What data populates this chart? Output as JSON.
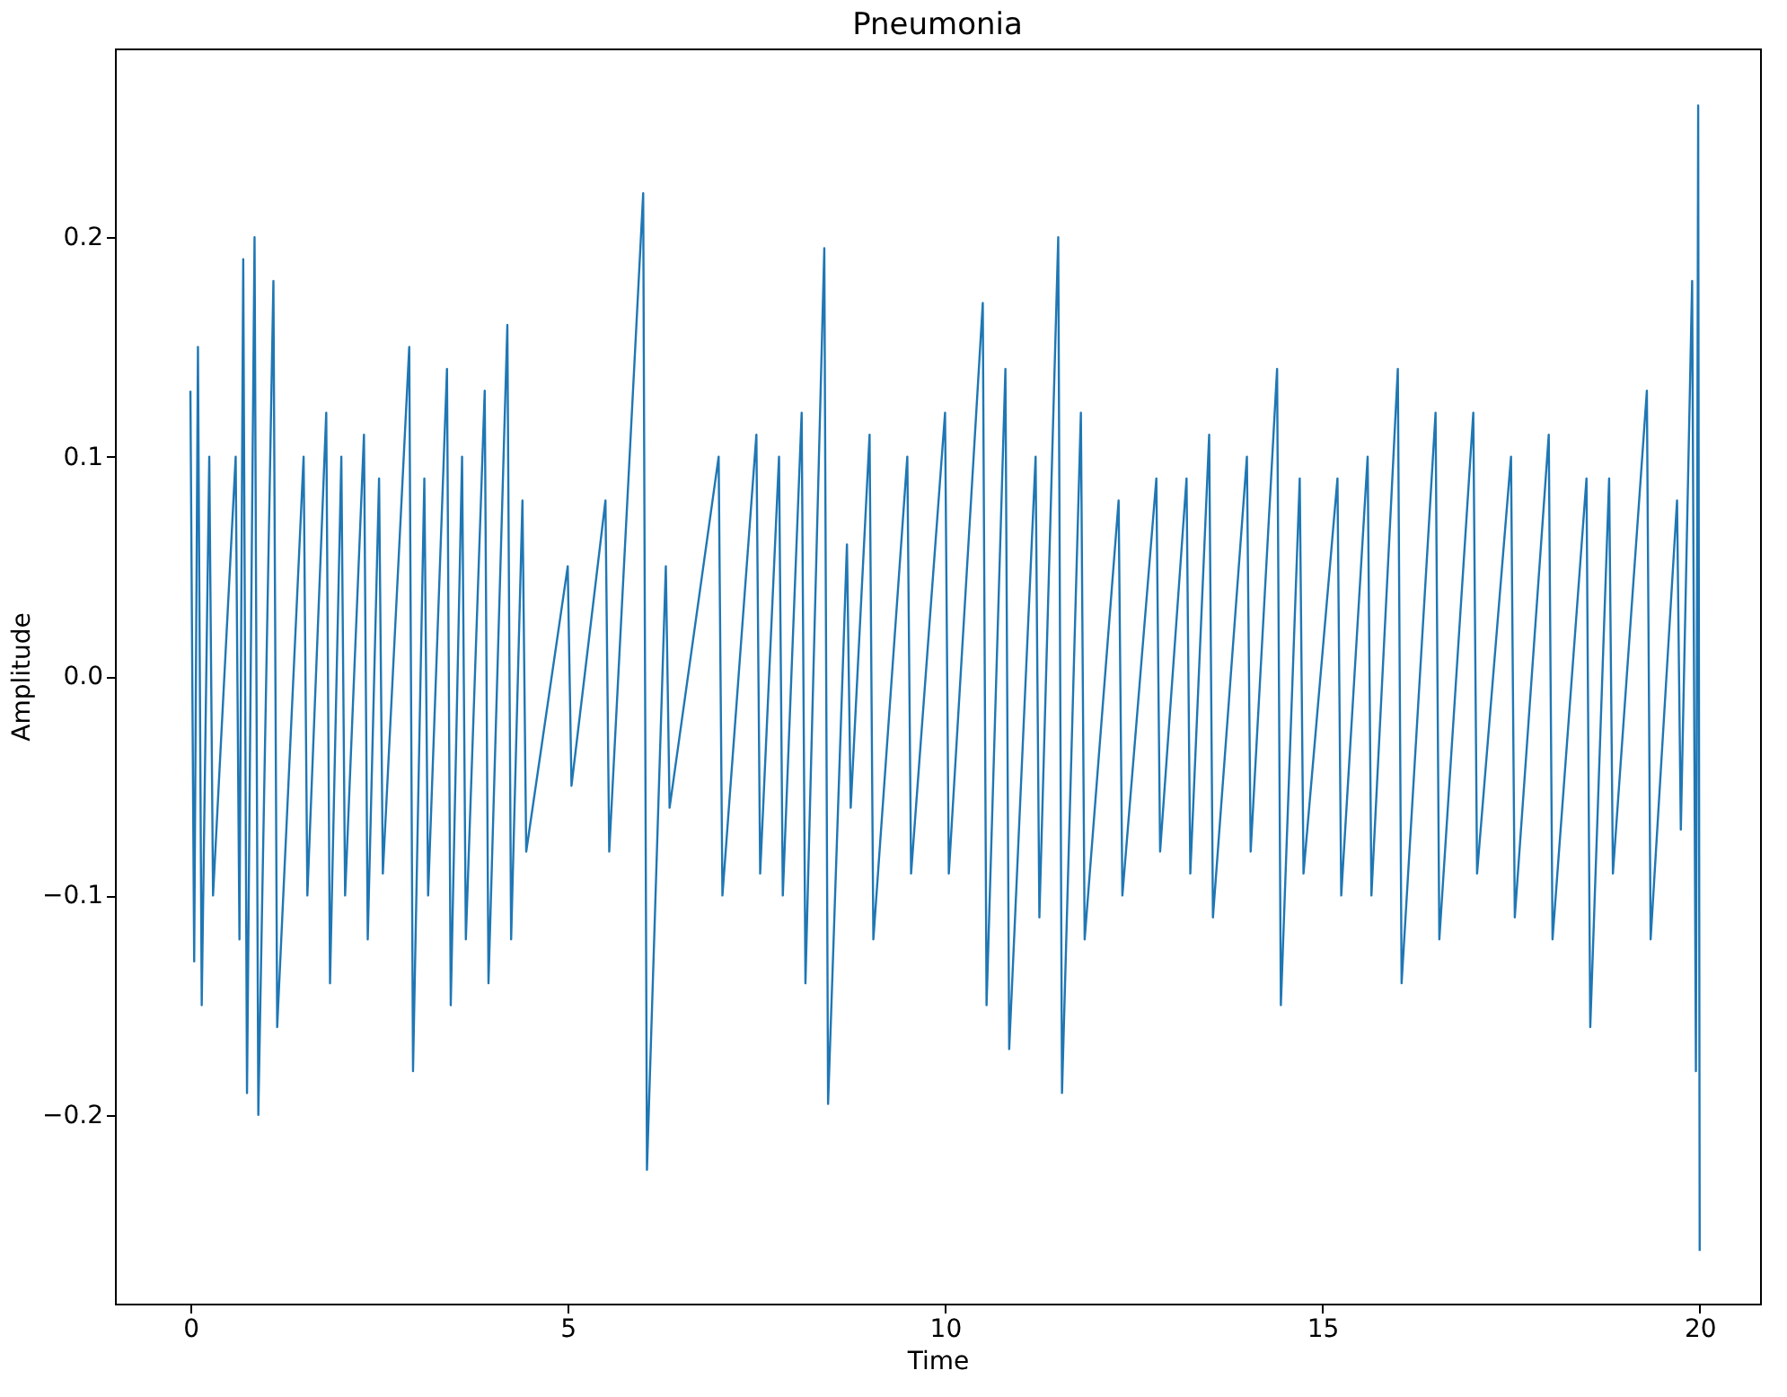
{
  "chart_data": {
    "type": "line",
    "title": "Pneumonia",
    "xlabel": "Time",
    "ylabel": "Amplitude",
    "x": [
      0.0,
      0.05,
      0.1,
      0.15,
      0.25,
      0.3,
      0.6,
      0.65,
      0.7,
      0.75,
      0.85,
      0.9,
      1.1,
      1.15,
      1.5,
      1.55,
      1.8,
      1.85,
      2.0,
      2.05,
      2.3,
      2.35,
      2.5,
      2.55,
      2.9,
      2.95,
      3.1,
      3.15,
      3.4,
      3.45,
      3.6,
      3.65,
      3.9,
      3.95,
      4.2,
      4.25,
      4.4,
      4.45,
      5.0,
      5.05,
      5.5,
      5.55,
      6.0,
      6.05,
      6.3,
      6.35,
      7.0,
      7.05,
      7.5,
      7.55,
      7.8,
      7.85,
      8.1,
      8.15,
      8.4,
      8.45,
      8.7,
      8.75,
      9.0,
      9.05,
      9.5,
      9.55,
      10.0,
      10.05,
      10.5,
      10.55,
      10.8,
      10.85,
      11.2,
      11.25,
      11.5,
      11.55,
      11.8,
      11.85,
      12.3,
      12.35,
      12.8,
      12.85,
      13.2,
      13.25,
      13.5,
      13.55,
      14.0,
      14.05,
      14.4,
      14.45,
      14.7,
      14.75,
      15.2,
      15.25,
      15.6,
      15.65,
      16.0,
      16.05,
      16.5,
      16.55,
      17.0,
      17.05,
      17.5,
      17.55,
      18.0,
      18.05,
      18.5,
      18.55,
      18.8,
      18.85,
      19.3,
      19.35,
      19.7,
      19.75,
      19.9,
      19.95,
      19.98,
      20.0
    ],
    "series": [
      {
        "color": "#1f77b4",
        "values": [
          0.13,
          -0.13,
          0.15,
          -0.15,
          0.1,
          -0.1,
          0.1,
          -0.12,
          0.19,
          -0.19,
          0.2,
          -0.2,
          0.18,
          -0.16,
          0.1,
          -0.1,
          0.12,
          -0.14,
          0.1,
          -0.1,
          0.11,
          -0.12,
          0.09,
          -0.09,
          0.15,
          -0.18,
          0.09,
          -0.1,
          0.14,
          -0.15,
          0.1,
          -0.12,
          0.13,
          -0.14,
          0.16,
          -0.12,
          0.08,
          -0.08,
          0.05,
          -0.05,
          0.08,
          -0.08,
          0.22,
          -0.225,
          0.05,
          -0.06,
          0.1,
          -0.1,
          0.11,
          -0.09,
          0.1,
          -0.1,
          0.12,
          -0.14,
          0.195,
          -0.195,
          0.06,
          -0.06,
          0.11,
          -0.12,
          0.1,
          -0.09,
          0.12,
          -0.09,
          0.17,
          -0.15,
          0.14,
          -0.17,
          0.1,
          -0.11,
          0.2,
          -0.19,
          0.12,
          -0.12,
          0.08,
          -0.1,
          0.09,
          -0.08,
          0.09,
          -0.09,
          0.11,
          -0.11,
          0.1,
          -0.08,
          0.14,
          -0.15,
          0.09,
          -0.09,
          0.09,
          -0.1,
          0.1,
          -0.1,
          0.14,
          -0.14,
          0.12,
          -0.12,
          0.12,
          -0.09,
          0.1,
          -0.11,
          0.11,
          -0.12,
          0.09,
          -0.16,
          0.09,
          -0.09,
          0.13,
          -0.12,
          0.08,
          -0.07,
          0.18,
          -0.18,
          0.26,
          -0.262
        ]
      }
    ],
    "xlim": [
      -1.0,
      20.8
    ],
    "ylim": [
      -0.286,
      0.286
    ],
    "xticks": [
      0,
      5,
      10,
      15,
      20
    ],
    "yticks": [
      {
        "value": -0.2,
        "label": "−0.2"
      },
      {
        "value": -0.1,
        "label": "−0.1"
      },
      {
        "value": 0.0,
        "label": "0.0"
      },
      {
        "value": 0.1,
        "label": "0.1"
      },
      {
        "value": 0.2,
        "label": "0.2"
      }
    ],
    "grid": false,
    "marker": "none",
    "line_style": "solid"
  }
}
